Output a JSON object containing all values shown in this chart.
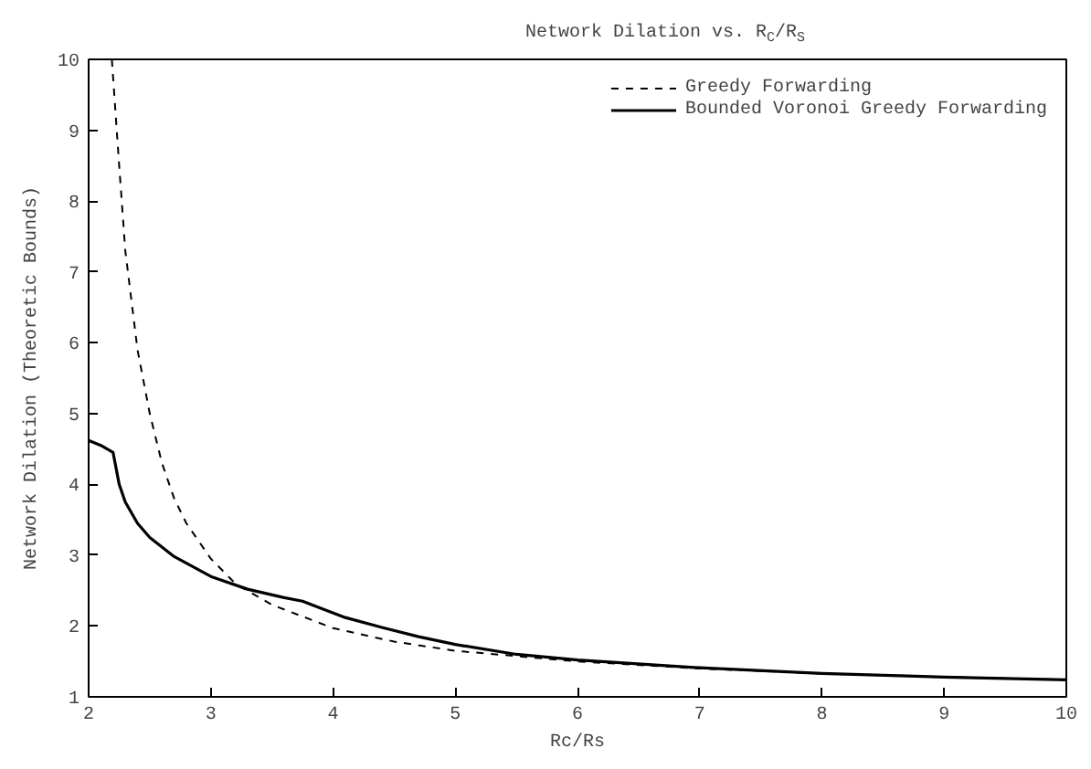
{
  "chart_data": {
    "type": "line",
    "title": "Network Dilation vs. R$_{C}$/R$_{S}$",
    "xlabel": "Rc/Rs",
    "ylabel": "Network Dilation (Theoretic Bounds)",
    "xlim": [
      2,
      10
    ],
    "ylim": [
      1,
      10
    ],
    "xticks": [
      2,
      3,
      4,
      5,
      6,
      7,
      8,
      9,
      10
    ],
    "yticks": [
      1,
      2,
      3,
      4,
      5,
      6,
      7,
      8,
      9,
      10
    ],
    "grid": false,
    "legend": "top right",
    "series": [
      {
        "name": "Greedy Forwarding",
        "color": "#000000",
        "line_style": "dashed",
        "x": [
          2.19,
          2.25,
          2.3,
          2.4,
          2.5,
          2.6,
          2.7,
          2.8,
          3.0,
          3.2,
          3.5,
          4,
          4.5,
          5,
          6,
          7,
          8,
          9,
          10
        ],
        "values": [
          10,
          8.5,
          7.3,
          5.9,
          5.0,
          4.3,
          3.8,
          3.45,
          2.95,
          2.6,
          2.3,
          1.97,
          1.78,
          1.65,
          1.5,
          1.4,
          1.33,
          1.28,
          1.24
        ]
      },
      {
        "name": "Bounded Voronoi Greedy Forwarding",
        "color": "#000000",
        "line_style": "solid",
        "x": [
          2,
          2.1,
          2.2,
          2.25,
          2.3,
          2.4,
          2.5,
          2.7,
          3.0,
          3.3,
          3.6,
          3.75,
          3.9,
          4.1,
          4.4,
          4.7,
          5,
          5.5,
          6,
          7,
          8,
          9,
          10
        ],
        "values": [
          4.62,
          4.55,
          4.45,
          4.0,
          3.75,
          3.45,
          3.25,
          2.98,
          2.7,
          2.52,
          2.4,
          2.35,
          2.25,
          2.12,
          1.98,
          1.85,
          1.74,
          1.6,
          1.52,
          1.41,
          1.33,
          1.28,
          1.24
        ]
      }
    ]
  }
}
